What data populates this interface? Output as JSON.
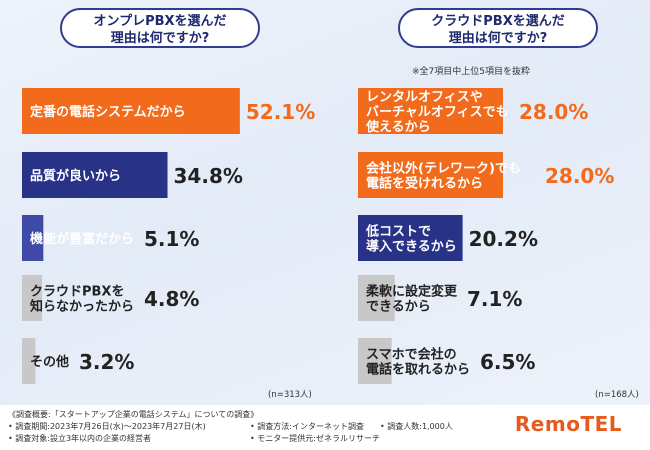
{
  "titles": {
    "left_line1": "オンプレPBXを選んだ",
    "left_line2": "理由は何ですか?",
    "right_line1": "クラウドPBXを選んだ",
    "right_line2": "理由は何ですか?"
  },
  "notes": {
    "right_sub": "※全7項目中上位5項目を抜粋",
    "left_n": "(n=313人)",
    "right_n": "(n=168人)"
  },
  "colors": {
    "orange": "#f26a1b",
    "navy": "#283287",
    "indigo": "#3f4aa8",
    "gray": "#c8c8c8",
    "value_orange": "#f26a1b",
    "value_dark": "#222222"
  },
  "chart_data": [
    {
      "type": "bar",
      "title": "オンプレPBXを選んだ理由は何ですか?",
      "n": "(n=313人)",
      "categories": [
        "定番の電話システムだから",
        "品質が良いから",
        "機能が豊富だから",
        "クラウドPBXを知らなかったから",
        "その他"
      ],
      "label_lines": [
        [
          "定番の電話システムだから"
        ],
        [
          "品質が良いから"
        ],
        [
          "機能が豊富だから"
        ],
        [
          "クラウドPBXを",
          "知らなかったから"
        ],
        [
          "その他"
        ]
      ],
      "values": [
        52.1,
        34.8,
        5.1,
        4.8,
        3.2
      ],
      "value_labels": [
        "52.1%",
        "34.8%",
        "5.1%",
        "4.8%",
        "3.2%"
      ],
      "bar_colors": [
        "#f26a1b",
        "#283287",
        "#3f4aa8",
        "#c8c8c8",
        "#c8c8c8"
      ]
    },
    {
      "type": "bar",
      "title": "クラウドPBXを選んだ理由は何ですか?",
      "n": "(n=168人)",
      "categories": [
        "レンタルオフィスやバーチャルオフィスでも使えるから",
        "会社以外(テレワーク)でも電話を受けれるから",
        "低コストで導入できるから",
        "柔軟に設定変更できるから",
        "スマホで会社の電話を取れるから"
      ],
      "label_lines": [
        [
          "レンタルオフィスや",
          "バーチャルオフィスでも",
          "使えるから"
        ],
        [
          "会社以外(テレワーク)でも",
          "電話を受けれるから"
        ],
        [
          "低コストで",
          "導入できるから"
        ],
        [
          "柔軟に設定変更",
          "できるから"
        ],
        [
          "スマホで会社の",
          "電話を取れるから"
        ]
      ],
      "values": [
        28.0,
        28.0,
        20.2,
        7.1,
        6.5
      ],
      "value_labels": [
        "28.0%",
        "28.0%",
        "20.2%",
        "7.1%",
        "6.5%"
      ],
      "bar_colors": [
        "#f26a1b",
        "#f26a1b",
        "#283287",
        "#c8c8c8",
        "#c8c8c8"
      ]
    }
  ],
  "footer": {
    "line1": "《調査概要:「スタートアップ企業の電話システム」についての調査》",
    "line2a": "• 調査期間:2023年7月26日(水)〜2023年7月27日(木)",
    "line2b": "• 調査方法:インターネット調査",
    "line2c": "• 調査人数:1,000人",
    "line3a": "• 調査対象:設立3年以内の企業の経営者",
    "line3b": "• モニター提供元:ゼネラルリサーチ",
    "logo": "RemoTEL"
  }
}
